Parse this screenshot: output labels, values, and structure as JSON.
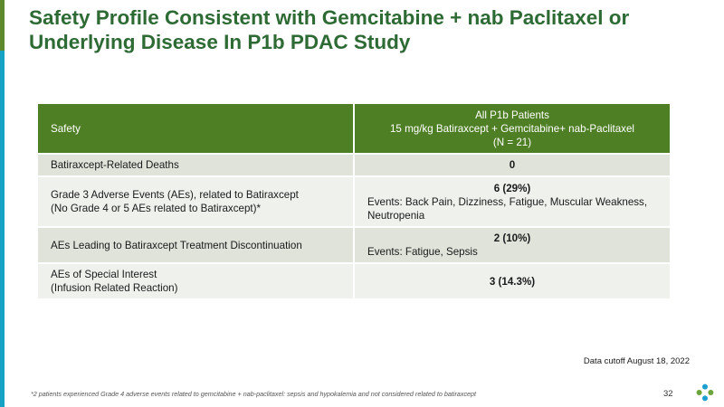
{
  "title": "Safety Profile Consistent with Gemcitabine + nab Paclitaxel or Underlying Disease In P1b PDAC Study",
  "table": {
    "header": {
      "left": "Safety",
      "right_line1": "All P1b Patients",
      "right_line2": "15 mg/kg Batiraxcept + Gemcitabine+ nab-Paclitaxel",
      "right_line3": "(N = 21)"
    },
    "rows": [
      {
        "label_line1": "Batiraxcept-Related Deaths",
        "label_line2": "",
        "value": "0",
        "events": ""
      },
      {
        "label_line1": "Grade 3 Adverse Events (AEs), related to Batiraxcept",
        "label_line2": "(No Grade 4 or 5 AEs related to Batiraxcept)*",
        "value": "6 (29%)",
        "events": "Events: Back Pain, Dizziness, Fatigue,  Muscular Weakness, Neutropenia"
      },
      {
        "label_line1": "AEs Leading to Batiraxcept Treatment Discontinuation",
        "label_line2": "",
        "value": "2 (10%)",
        "events": "Events: Fatigue, Sepsis"
      },
      {
        "label_line1": "AEs of Special Interest",
        "label_line2": "(Infusion Related Reaction)",
        "value": "3 (14.3%)",
        "events": ""
      }
    ]
  },
  "cutoff": "Data cutoff August 18, 2022",
  "footnote": "*2 patients experienced Grade 4 adverse events related to gemcitabine + nab-paclitaxel: sepsis and hypokalemia and not considered related to batiraxcept",
  "page_number": "32",
  "colors": {
    "title": "#2d6a34",
    "header_bg": "#4f7f25",
    "row_dark": "#dfe3da",
    "row_light": "#eef1ec",
    "accent_green": "#5e8a2d",
    "accent_blue": "#16a2c4"
  },
  "logo_icon": "company-logo-icon"
}
